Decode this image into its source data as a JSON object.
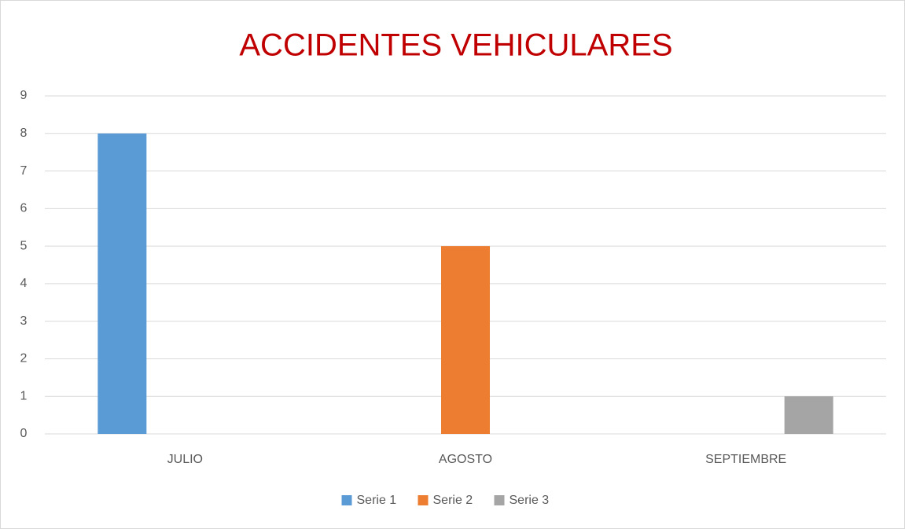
{
  "chart_data": {
    "type": "bar",
    "title": "ACCIDENTES VEHICULARES",
    "categories": [
      "JULIO",
      "AGOSTO",
      "SEPTIEMBRE"
    ],
    "series": [
      {
        "name": "Serie 1",
        "color": "#5b9bd5",
        "values": [
          8,
          null,
          null
        ]
      },
      {
        "name": "Serie 2",
        "color": "#ed7d31",
        "values": [
          null,
          5,
          null
        ]
      },
      {
        "name": "Serie 3",
        "color": "#a5a5a5",
        "values": [
          null,
          null,
          1
        ]
      }
    ],
    "ylim": [
      0,
      9
    ],
    "yticks": [
      0,
      1,
      2,
      3,
      4,
      5,
      6,
      7,
      8,
      9
    ],
    "grid": true,
    "legend": "bottom"
  }
}
